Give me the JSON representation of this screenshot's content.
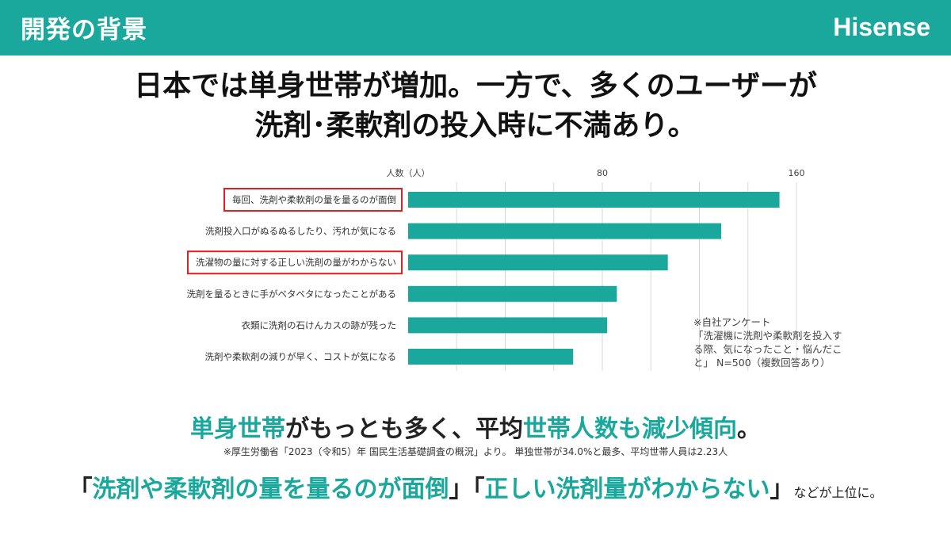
{
  "header": {
    "title": "開発の背景",
    "brand": "Hisense"
  },
  "headline": {
    "line1": "日本では単身世帯が増加。一方で、多くのユーザーが",
    "line2": "洗剤･柔軟剤の投入時に不満あり。"
  },
  "colors": {
    "accent": "#1aa89c",
    "highlight_box": "#e02020",
    "grid": "#d8d8d8"
  },
  "chart_data": {
    "type": "bar",
    "orientation": "horizontal",
    "ylabel": "人数（人）",
    "xlim": [
      0,
      160
    ],
    "ticks": [
      "80",
      "160"
    ],
    "tick_values": [
      80,
      160
    ],
    "grid": true,
    "categories": [
      "毎回、洗剤や柔軟剤の量を量るのが面倒",
      "洗剤投入口がぬるぬるしたり、汚れが気になる",
      "洗濯物の量に対する正しい洗剤の量がわからない",
      "洗剤を量るときに手がベタベタになったことがある",
      "衣類に洗剤の石けんカスの跡が残った",
      "洗剤や柔軟剤の減りが早く、コストが気になる"
    ],
    "values": [
      153,
      129,
      107,
      86,
      82,
      68
    ],
    "highlighted": [
      0,
      2
    ]
  },
  "note": {
    "line1": "※自社アンケート",
    "line2": "「洗濯機に洗剤や柔軟剤を投入す",
    "line3": "る際、気になったこと・悩んだこ",
    "line4": "と」 N=500（複数回答あり）"
  },
  "summary": {
    "part1": "単身世帯",
    "part2": "がもっとも多く、平均",
    "part3": "世帯人数も減少傾向",
    "part4": "。"
  },
  "source": "※厚生労働省「2023（令和5）年 国民生活基礎調査の概況」より。 単独世帯が34.0%と最多、平均世帯人員は2.23人",
  "conclusion": {
    "open1": "「",
    "quote1": "洗剤や柔軟剤の量を量るのが面倒",
    "close1": "」",
    "open2": "「",
    "quote2": "正しい洗剤量がわからない",
    "close2": "」",
    "tail": "などが上位に。"
  }
}
